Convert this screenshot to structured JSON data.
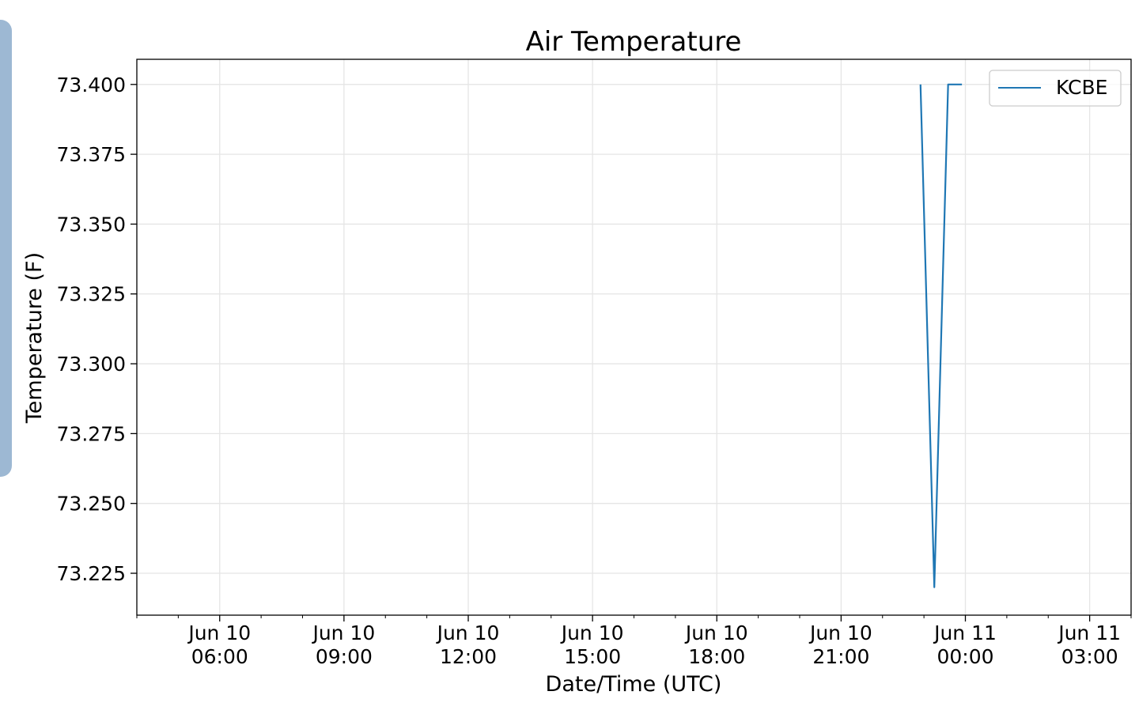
{
  "chart_data": {
    "type": "line",
    "title": "Air Temperature",
    "xlabel": "Date/Time (UTC)",
    "ylabel": "Temperature (F)",
    "xlim": [
      "2019-06-10T04:00",
      "2019-06-11T04:00"
    ],
    "ylim": [
      73.21,
      73.409
    ],
    "grid": true,
    "legend_position": "top-right",
    "x_ticks": [
      {
        "value": "2019-06-10T06:00",
        "line1": "Jun 10",
        "line2": "06:00"
      },
      {
        "value": "2019-06-10T09:00",
        "line1": "Jun 10",
        "line2": "09:00"
      },
      {
        "value": "2019-06-10T12:00",
        "line1": "Jun 10",
        "line2": "12:00"
      },
      {
        "value": "2019-06-10T15:00",
        "line1": "Jun 10",
        "line2": "15:00"
      },
      {
        "value": "2019-06-10T18:00",
        "line1": "Jun 10",
        "line2": "18:00"
      },
      {
        "value": "2019-06-10T21:00",
        "line1": "Jun 10",
        "line2": "21:00"
      },
      {
        "value": "2019-06-11T00:00",
        "line1": "Jun 11",
        "line2": "00:00"
      },
      {
        "value": "2019-06-11T03:00",
        "line1": "Jun 11",
        "line2": "03:00"
      }
    ],
    "x_minor_ticks": [
      "2019-06-10T04:00",
      "2019-06-10T05:00",
      "2019-06-10T07:00",
      "2019-06-10T08:00",
      "2019-06-10T10:00",
      "2019-06-10T11:00",
      "2019-06-10T13:00",
      "2019-06-10T14:00",
      "2019-06-10T16:00",
      "2019-06-10T17:00",
      "2019-06-10T19:00",
      "2019-06-10T20:00",
      "2019-06-10T22:00",
      "2019-06-10T23:00",
      "2019-06-11T01:00",
      "2019-06-11T02:00",
      "2019-06-11T04:00"
    ],
    "y_ticks": [
      {
        "value": 73.225,
        "label": "73.225"
      },
      {
        "value": 73.25,
        "label": "73.250"
      },
      {
        "value": 73.275,
        "label": "73.275"
      },
      {
        "value": 73.3,
        "label": "73.300"
      },
      {
        "value": 73.325,
        "label": "73.325"
      },
      {
        "value": 73.35,
        "label": "73.350"
      },
      {
        "value": 73.375,
        "label": "73.375"
      },
      {
        "value": 73.4,
        "label": "73.400"
      }
    ],
    "series": [
      {
        "name": "KCBE",
        "color": "#1f77b4",
        "points": [
          {
            "x": "2019-06-10T22:55",
            "y": 73.4
          },
          {
            "x": "2019-06-10T23:15",
            "y": 73.22
          },
          {
            "x": "2019-06-10T23:35",
            "y": 73.4
          },
          {
            "x": "2019-06-10T23:55",
            "y": 73.4
          }
        ]
      }
    ]
  }
}
